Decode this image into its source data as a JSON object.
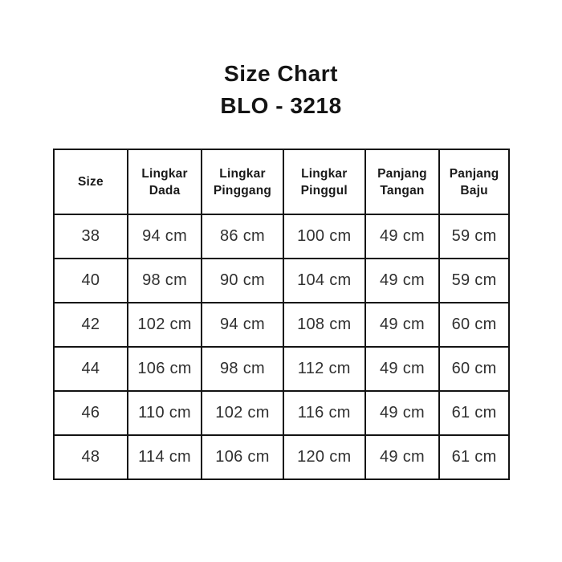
{
  "title": {
    "line1": "Size Chart",
    "line2": "BLO - 3218"
  },
  "table": {
    "columns": [
      "Size",
      "Lingkar Dada",
      "Lingkar Pinggang",
      "Lingkar Pinggul",
      "Panjang Tangan",
      "Panjang Baju"
    ],
    "rows": [
      [
        "38",
        "94 cm",
        "86 cm",
        "100 cm",
        "49 cm",
        "59 cm"
      ],
      [
        "40",
        "98 cm",
        "90 cm",
        "104 cm",
        "49 cm",
        "59 cm"
      ],
      [
        "42",
        "102 cm",
        "94 cm",
        "108 cm",
        "49 cm",
        "60 cm"
      ],
      [
        "44",
        "106 cm",
        "98 cm",
        "112 cm",
        "49 cm",
        "60 cm"
      ],
      [
        "46",
        "110 cm",
        "102 cm",
        "116 cm",
        "49 cm",
        "61 cm"
      ],
      [
        "48",
        "114 cm",
        "106 cm",
        "120 cm",
        "49 cm",
        "61 cm"
      ]
    ]
  },
  "colors": {
    "background": "#ffffff",
    "text": "#1a1a1a",
    "cell_text": "#303030",
    "border": "#131313"
  },
  "chart_data": {
    "type": "table",
    "title": "Size Chart BLO - 3218",
    "columns": [
      "Size",
      "Lingkar Dada",
      "Lingkar Pinggang",
      "Lingkar Pinggul",
      "Panjang Tangan",
      "Panjang Baju"
    ],
    "rows": [
      [
        "38",
        "94 cm",
        "86 cm",
        "100 cm",
        "49 cm",
        "59 cm"
      ],
      [
        "40",
        "98 cm",
        "90 cm",
        "104 cm",
        "49 cm",
        "59 cm"
      ],
      [
        "42",
        "102 cm",
        "94 cm",
        "108 cm",
        "49 cm",
        "60 cm"
      ],
      [
        "44",
        "106 cm",
        "98 cm",
        "112 cm",
        "49 cm",
        "60 cm"
      ],
      [
        "46",
        "110 cm",
        "102 cm",
        "116 cm",
        "49 cm",
        "61 cm"
      ],
      [
        "48",
        "114 cm",
        "106 cm",
        "120 cm",
        "49 cm",
        "61 cm"
      ]
    ]
  }
}
